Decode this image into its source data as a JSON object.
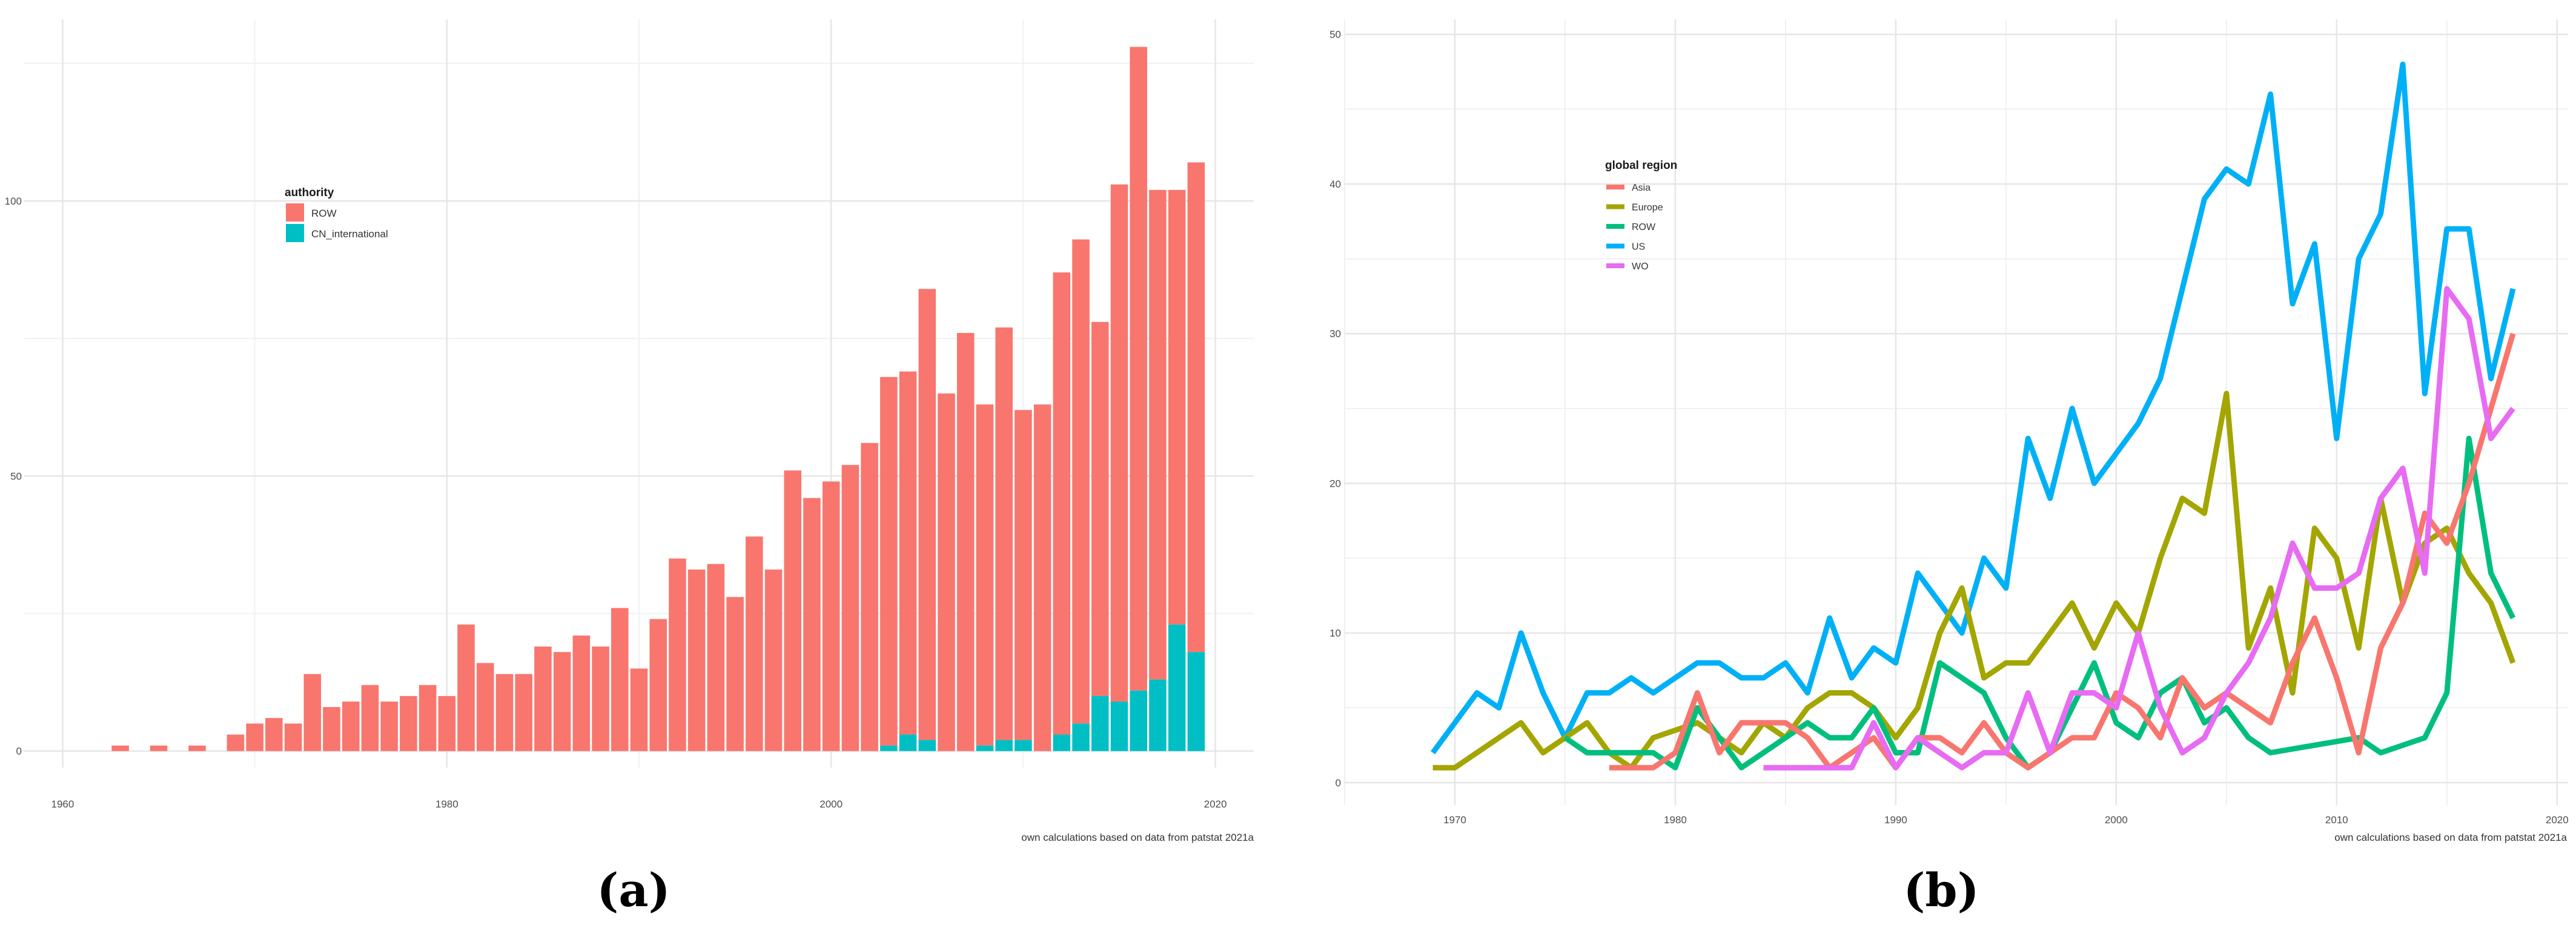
{
  "chart_data": [
    {
      "type": "bar",
      "stacked": true,
      "caption": "(a)",
      "title": "",
      "xlabel": "",
      "ylabel": "",
      "xlim": [
        1958,
        2022
      ],
      "ylim": [
        -3,
        133
      ],
      "x_ticks": [
        1960,
        1980,
        2000,
        2020
      ],
      "y_ticks": [
        0,
        50,
        100
      ],
      "grid": true,
      "legend": {
        "title": "authority",
        "position": "upper-left",
        "entries": [
          "ROW",
          "CN_international"
        ]
      },
      "annotation": "own calculations based on data from patstat 2021a",
      "categories": [
        1963,
        1964,
        1965,
        1966,
        1967,
        1968,
        1969,
        1970,
        1971,
        1972,
        1973,
        1974,
        1975,
        1976,
        1977,
        1978,
        1979,
        1980,
        1981,
        1982,
        1983,
        1984,
        1985,
        1986,
        1987,
        1988,
        1989,
        1990,
        1991,
        1992,
        1993,
        1994,
        1995,
        1996,
        1997,
        1998,
        1999,
        2000,
        2001,
        2002,
        2003,
        2004,
        2005,
        2006,
        2007,
        2008,
        2009,
        2010,
        2011,
        2012,
        2013,
        2014,
        2015,
        2016,
        2017,
        2018,
        2019
      ],
      "series": [
        {
          "name": "ROW",
          "color": "#F8766D",
          "values": [
            1,
            0,
            1,
            0,
            1,
            0,
            3,
            5,
            6,
            5,
            14,
            8,
            9,
            12,
            9,
            10,
            12,
            10,
            23,
            16,
            14,
            14,
            19,
            18,
            21,
            19,
            26,
            15,
            24,
            35,
            33,
            34,
            28,
            39,
            33,
            51,
            46,
            49,
            52,
            56,
            67,
            66,
            82,
            65,
            76,
            62,
            75,
            60,
            63,
            84,
            88,
            68,
            94,
            117,
            89,
            79,
            89
          ]
        },
        {
          "name": "CN_international",
          "color": "#00BFC4",
          "values": [
            0,
            0,
            0,
            0,
            0,
            0,
            0,
            0,
            0,
            0,
            0,
            0,
            0,
            0,
            0,
            0,
            0,
            0,
            0,
            0,
            0,
            0,
            0,
            0,
            0,
            0,
            0,
            0,
            0,
            0,
            0,
            0,
            0,
            0,
            0,
            0,
            0,
            0,
            0,
            0,
            1,
            3,
            2,
            0,
            0,
            1,
            2,
            2,
            0,
            3,
            5,
            10,
            9,
            11,
            13,
            23,
            18
          ]
        }
      ]
    },
    {
      "type": "line",
      "caption": "(b)",
      "title": "",
      "xlabel": "",
      "ylabel": "",
      "xlim": [
        1965,
        2020.5
      ],
      "ylim": [
        -1.5,
        51
      ],
      "x_ticks": [
        1970,
        1980,
        1990,
        2000,
        2010,
        2020
      ],
      "y_ticks": [
        0,
        10,
        20,
        30,
        40,
        50
      ],
      "grid": true,
      "legend": {
        "title": "global region",
        "position": "upper-left",
        "entries": [
          "Asia",
          "Europe",
          "ROW",
          "US",
          "WO"
        ]
      },
      "annotation": "own calculations based on data from patstat 2021a",
      "series": [
        {
          "name": "US",
          "color": "#00B0F6",
          "x": [
            1969,
            1970,
            1971,
            1972,
            1973,
            1974,
            1975,
            1976,
            1977,
            1978,
            1979,
            1980,
            1981,
            1982,
            1983,
            1984,
            1985,
            1986,
            1987,
            1988,
            1989,
            1990,
            1991,
            1992,
            1993,
            1994,
            1995,
            1996,
            1997,
            1998,
            1999,
            2000,
            2001,
            2002,
            2003,
            2004,
            2005,
            2006,
            2007,
            2008,
            2009,
            2010,
            2011,
            2012,
            2013,
            2014,
            2015,
            2016,
            2017,
            2018
          ],
          "y": [
            2,
            4,
            6,
            5,
            10,
            6,
            3,
            6,
            6,
            7,
            6,
            7,
            8,
            8,
            7,
            7,
            8,
            6,
            11,
            7,
            9,
            8,
            14,
            12,
            10,
            15,
            13,
            23,
            19,
            25,
            20,
            22,
            24,
            27,
            33,
            39,
            41,
            40,
            46,
            32,
            36,
            23,
            35,
            38,
            48,
            26,
            37,
            37,
            27,
            33
          ]
        },
        {
          "name": "Europe",
          "color": "#A3A500",
          "x": [
            1969,
            1970,
            1973,
            1974,
            1976,
            1977,
            1978,
            1979,
            1981,
            1983,
            1984,
            1985,
            1986,
            1987,
            1988,
            1989,
            1990,
            1991,
            1992,
            1993,
            1994,
            1995,
            1996,
            1997,
            1998,
            1999,
            2000,
            2001,
            2002,
            2003,
            2004,
            2005,
            2006,
            2007,
            2008,
            2009,
            2010,
            2011,
            2012,
            2013,
            2014,
            2015,
            2016,
            2017,
            2018
          ],
          "y": [
            1,
            1,
            4,
            2,
            4,
            2,
            1,
            3,
            4,
            2,
            4,
            3,
            5,
            6,
            6,
            5,
            3,
            5,
            10,
            13,
            7,
            8,
            8,
            10,
            12,
            9,
            12,
            10,
            15,
            19,
            18,
            26,
            9,
            13,
            6,
            17,
            15,
            9,
            19,
            12,
            16,
            17,
            14,
            12,
            8
          ]
        },
        {
          "name": "ROW",
          "color": "#00BF7D",
          "x": [
            1975,
            1976,
            1977,
            1978,
            1979,
            1980,
            1981,
            1982,
            1983,
            1984,
            1985,
            1986,
            1987,
            1988,
            1989,
            1990,
            1991,
            1992,
            1993,
            1994,
            1995,
            1996,
            1997,
            1998,
            1999,
            2000,
            2001,
            2002,
            2003,
            2004,
            2005,
            2006,
            2007,
            2011,
            2012,
            2013,
            2014,
            2015,
            2016,
            2017,
            2018
          ],
          "y": [
            3,
            2,
            2,
            2,
            2,
            1,
            5,
            3,
            1,
            2,
            3,
            4,
            3,
            3,
            5,
            2,
            2,
            8,
            7,
            6,
            3,
            1,
            2,
            5,
            8,
            4,
            3,
            6,
            7,
            4,
            5,
            3,
            2,
            3,
            2,
            2.5,
            3,
            6,
            23,
            14,
            11
          ]
        },
        {
          "name": "Asia",
          "color": "#F8766D",
          "x": [
            1977,
            1978,
            1979,
            1980,
            1981,
            1982,
            1983,
            1984,
            1985,
            1986,
            1987,
            1988,
            1989,
            1990,
            1991,
            1992,
            1993,
            1994,
            1995,
            1996,
            1997,
            1998,
            1999,
            2000,
            2001,
            2002,
            2003,
            2004,
            2005,
            2006,
            2007,
            2008,
            2009,
            2010,
            2011,
            2012,
            2013,
            2014,
            2015,
            2016,
            2017,
            2018
          ],
          "y": [
            1,
            1,
            1,
            2,
            6,
            2,
            4,
            4,
            4,
            3,
            1,
            2,
            3,
            1,
            3,
            3,
            2,
            4,
            2,
            1,
            2,
            3,
            3,
            6,
            5,
            3,
            7,
            5,
            6,
            5,
            4,
            8,
            11,
            7,
            2,
            9,
            12,
            18,
            16,
            20,
            25,
            30
          ]
        },
        {
          "name": "WO",
          "color": "#E76BF3",
          "x": [
            1984,
            1985,
            1986,
            1987,
            1988,
            1989,
            1990,
            1991,
            1992,
            1993,
            1994,
            1995,
            1996,
            1997,
            1998,
            1999,
            2000,
            2001,
            2002,
            2003,
            2004,
            2005,
            2006,
            2007,
            2008,
            2009,
            2010,
            2011,
            2012,
            2013,
            2014,
            2015,
            2016,
            2017,
            2018
          ],
          "y": [
            1,
            1,
            1,
            1,
            1,
            4,
            1,
            3,
            2,
            1,
            2,
            2,
            6,
            2,
            6,
            6,
            5,
            10,
            5,
            2,
            3,
            6,
            8,
            11,
            16,
            13,
            13,
            14,
            19,
            21,
            14,
            33,
            31,
            23,
            25
          ]
        }
      ]
    }
  ]
}
